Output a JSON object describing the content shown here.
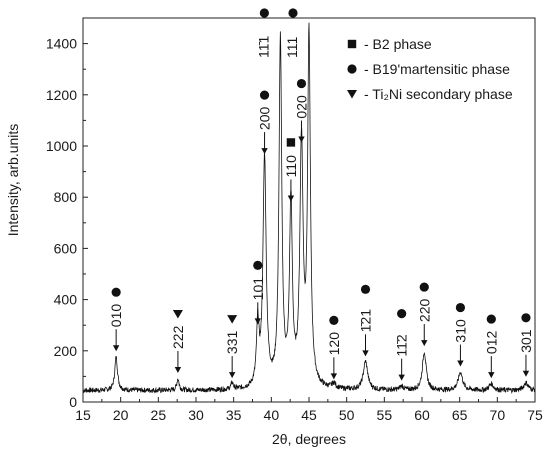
{
  "chart_data": {
    "type": "line",
    "xlabel": "2θ, degrees",
    "ylabel": "Intensity, arb.units",
    "xlim": [
      15,
      75
    ],
    "ylim": [
      0,
      1500
    ],
    "x_ticks": [
      15,
      20,
      25,
      30,
      35,
      40,
      45,
      50,
      55,
      60,
      65,
      70,
      75
    ],
    "y_ticks": [
      0,
      200,
      400,
      600,
      800,
      1000,
      1200,
      1400
    ],
    "baseline": 45,
    "noise_amplitude": 10,
    "grid": false,
    "legend_position": "top-right",
    "legend": [
      {
        "marker": "square",
        "label": "- B2 phase"
      },
      {
        "marker": "circle",
        "label": "- B19'martensitic phase"
      },
      {
        "marker": "triangle",
        "label": "- Ti₂Ni secondary phase"
      }
    ],
    "peaks": [
      {
        "label": "010",
        "x": 19.4,
        "y": 175,
        "width": 0.22,
        "marker": "circle"
      },
      {
        "label": "222",
        "x": 27.6,
        "y": 90,
        "width": 0.18,
        "marker": "triangle"
      },
      {
        "label": "331",
        "x": 34.8,
        "y": 70,
        "width": 0.18,
        "marker": "triangle"
      },
      {
        "label": "101",
        "x": 38.2,
        "y": 280,
        "width": 0.2,
        "marker": "circle"
      },
      {
        "label": "200",
        "x": 39.1,
        "y": 945,
        "width": 0.25,
        "marker": "circle"
      },
      {
        "label": "11̄1",
        "x": 41.2,
        "y": 1400,
        "width": 0.22,
        "marker": "circle"
      },
      {
        "label": "110",
        "x": 42.6,
        "y": 760,
        "width": 0.22,
        "marker": "square"
      },
      {
        "label": "020",
        "x": 44.0,
        "y": 990,
        "width": 0.25,
        "marker": "circle"
      },
      {
        "label": "111",
        "x": 45.0,
        "y": 1405,
        "width": 0.22,
        "marker": "circle"
      },
      {
        "label": "120",
        "x": 48.3,
        "y": 65,
        "width": 0.3,
        "marker": "circle"
      },
      {
        "label": "1̄21",
        "x": 52.5,
        "y": 155,
        "width": 0.35,
        "marker": "circle"
      },
      {
        "label": "11̄2",
        "x": 57.3,
        "y": 60,
        "width": 0.3,
        "marker": "circle"
      },
      {
        "label": "220",
        "x": 60.3,
        "y": 195,
        "width": 0.3,
        "marker": "circle"
      },
      {
        "label": "310",
        "x": 65.1,
        "y": 115,
        "width": 0.35,
        "marker": "circle"
      },
      {
        "label": "012",
        "x": 69.2,
        "y": 70,
        "width": 0.35,
        "marker": "circle"
      },
      {
        "label": "301",
        "x": 73.8,
        "y": 75,
        "width": 0.35,
        "marker": "circle"
      }
    ]
  }
}
